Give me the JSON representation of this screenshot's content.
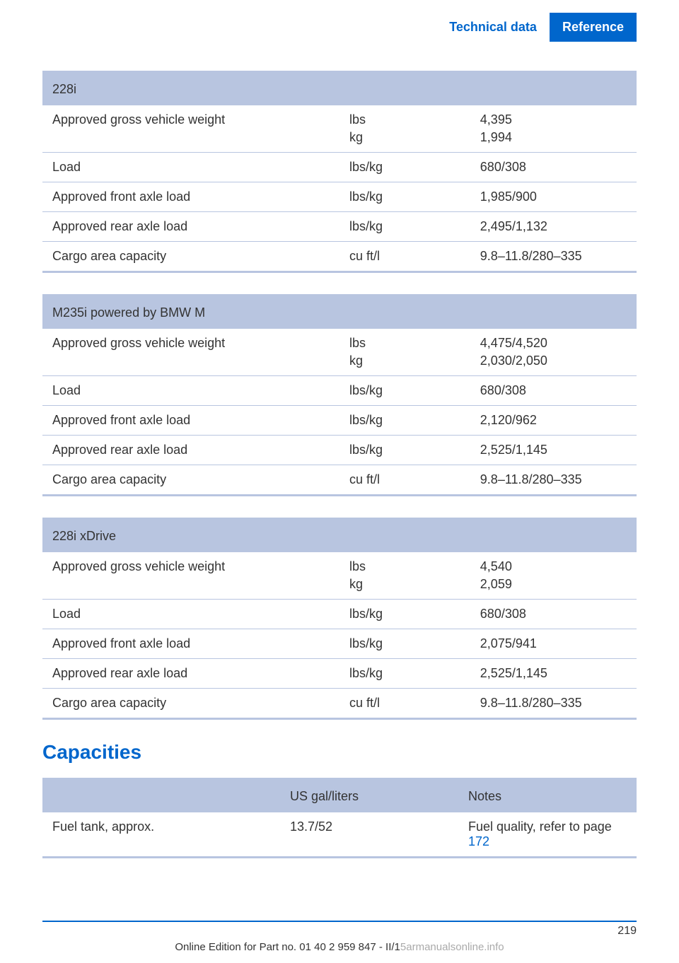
{
  "header": {
    "tab_light": "Technical data",
    "tab_blue": "Reference"
  },
  "tables": [
    {
      "title": "228i",
      "rows": [
        {
          "label": "Approved gross vehicle weight",
          "unit": "lbs",
          "unit2": "kg",
          "value": "4,395",
          "value2": "1,994"
        },
        {
          "label": "Load",
          "unit": "lbs/kg",
          "value": "680/308"
        },
        {
          "label": "Approved front axle load",
          "unit": "lbs/kg",
          "value": "1,985/900"
        },
        {
          "label": "Approved rear axle load",
          "unit": "lbs/kg",
          "value": "2,495/1,132"
        },
        {
          "label": "Cargo area capacity",
          "unit": "cu ft/l",
          "value": "9.8–11.8/280–335"
        }
      ]
    },
    {
      "title": "M235i powered by BMW M",
      "rows": [
        {
          "label": "Approved gross vehicle weight",
          "unit": "lbs",
          "unit2": "kg",
          "value": "4,475/4,520",
          "value2": "2,030/2,050"
        },
        {
          "label": "Load",
          "unit": "lbs/kg",
          "value": "680/308"
        },
        {
          "label": "Approved front axle load",
          "unit": "lbs/kg",
          "value": "2,120/962"
        },
        {
          "label": "Approved rear axle load",
          "unit": "lbs/kg",
          "value": "2,525/1,145"
        },
        {
          "label": "Cargo area capacity",
          "unit": "cu ft/l",
          "value": "9.8–11.8/280–335"
        }
      ]
    },
    {
      "title": "228i xDrive",
      "rows": [
        {
          "label": "Approved gross vehicle weight",
          "unit": "lbs",
          "unit2": "kg",
          "value": "4,540",
          "value2": "2,059"
        },
        {
          "label": "Load",
          "unit": "lbs/kg",
          "value": "680/308"
        },
        {
          "label": "Approved front axle load",
          "unit": "lbs/kg",
          "value": "2,075/941"
        },
        {
          "label": "Approved rear axle load",
          "unit": "lbs/kg",
          "value": "2,525/1,145"
        },
        {
          "label": "Cargo area capacity",
          "unit": "cu ft/l",
          "value": "9.8–11.8/280–335"
        }
      ]
    }
  ],
  "capacities": {
    "title": "Capacities",
    "header_col2": "US gal/liters",
    "header_col3": "Notes",
    "row": {
      "label": "Fuel tank, approx.",
      "value": "13.7/52",
      "note_prefix": "Fuel quality, refer to page ",
      "note_link": "172"
    }
  },
  "footer": {
    "page_number": "219",
    "text_dark": "Online Edition for Part no. 01 40 2 959 847 - II/1",
    "text_gray": "5armanualsonline.info"
  },
  "colors": {
    "header_blue": "#0066cc",
    "table_header_bg": "#b8c5e0",
    "link": "#0066cc"
  }
}
